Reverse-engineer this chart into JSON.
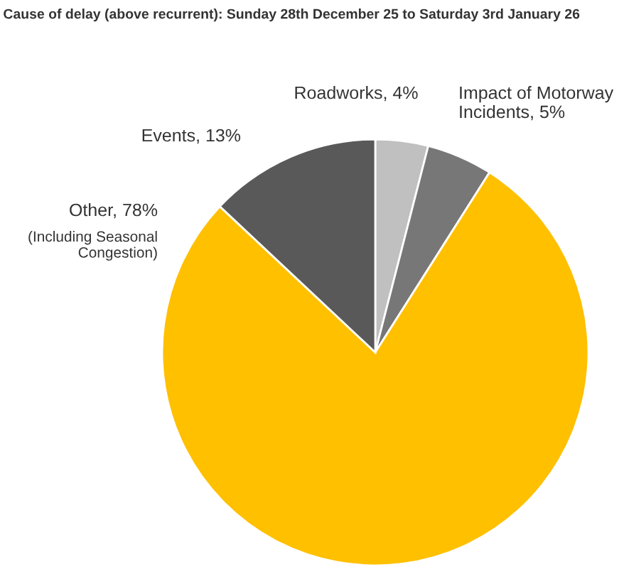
{
  "chart_data": {
    "type": "pie",
    "title": "Cause of delay (above recurrent): Sunday 28th December 25 to Saturday 3rd January 26",
    "categories": [
      "Roadworks",
      "Impact of Motorway Incidents",
      "Other",
      "Events"
    ],
    "values": [
      4,
      5,
      78,
      13
    ],
    "value_labels": [
      "4%",
      "5%",
      "78%",
      "13%"
    ],
    "colors": [
      "#c0c0c0",
      "#777777",
      "#ffc000",
      "#595959"
    ],
    "annotations": [
      "(Including Seasonal Congestion)"
    ],
    "legend": false
  }
}
